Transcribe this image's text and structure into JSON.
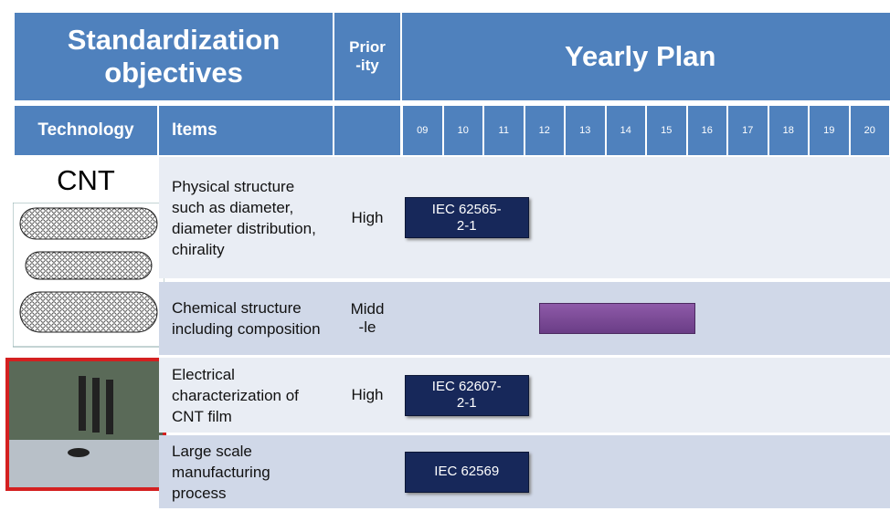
{
  "header": {
    "title": "Standardization objectives",
    "priority": "Prior\n-ity",
    "plan": "Yearly Plan"
  },
  "subheader": {
    "technology": "Technology",
    "items": "Items",
    "years": [
      "09",
      "10",
      "11",
      "12",
      "13",
      "14",
      "15",
      "16",
      "17",
      "18",
      "19",
      "20"
    ]
  },
  "rows": [
    {
      "technology": "CNT",
      "item": "Physical structure such as diameter, diameter distribution, chirality",
      "priority": "High",
      "bar": {
        "label": "IEC 62565-\n2-1",
        "from": "09",
        "to": "11"
      }
    },
    {
      "item": "Chemical structure including composition",
      "priority": "Midd\n-le",
      "bar": {
        "from": "12",
        "to": "15"
      }
    },
    {
      "item": "Electrical characterization of CNT film",
      "priority": "High",
      "bar": {
        "label": "IEC 62607-\n2-1",
        "from": "09",
        "to": "11"
      }
    },
    {
      "item": "Large scale manufacturing process",
      "priority": "",
      "bar": {
        "label": "IEC 62569",
        "from": "09",
        "to": "11"
      }
    }
  ]
}
